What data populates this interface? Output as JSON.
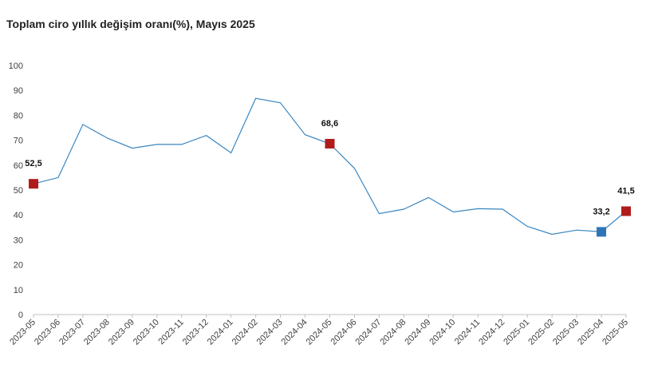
{
  "chart_data": {
    "type": "line",
    "title": "Toplam ciro yıllık değişim oranı(%), Mayıs 2025",
    "xlabel": "",
    "ylabel": "",
    "ylim": [
      0,
      100
    ],
    "yticks": [
      "0",
      "10",
      "20",
      "30",
      "40",
      "50",
      "60",
      "70",
      "80",
      "90",
      "100"
    ],
    "grid": false,
    "categories": [
      "2023-05",
      "2023-06",
      "2023-07",
      "2023-08",
      "2023-09",
      "2023-10",
      "2023-11",
      "2023-12",
      "2024-01",
      "2024-02",
      "2024-03",
      "2024-04",
      "2024-05",
      "2024-06",
      "2024-07",
      "2024-08",
      "2024-09",
      "2024-10",
      "2024-11",
      "2024-12",
      "2025-01",
      "2025-02",
      "2025-03",
      "2025-04",
      "2025-05"
    ],
    "series": [
      {
        "values": [
          52.5,
          55.0,
          76.3,
          70.8,
          66.8,
          68.3,
          68.3,
          71.9,
          64.9,
          86.8,
          85.0,
          72.2,
          68.6,
          58.7,
          40.5,
          42.3,
          47.0,
          41.2,
          42.5,
          42.3,
          35.4,
          32.2,
          33.9,
          33.2,
          41.5
        ],
        "color": "#3a86c0"
      }
    ],
    "highlights": [
      {
        "index": 0,
        "label": "52,5",
        "color": "#b01c1c"
      },
      {
        "index": 12,
        "label": "68,6",
        "color": "#b01c1c"
      },
      {
        "index": 23,
        "label": "33,2",
        "color": "#2e75b6"
      },
      {
        "index": 24,
        "label": "41,5",
        "color": "#b01c1c"
      }
    ]
  }
}
